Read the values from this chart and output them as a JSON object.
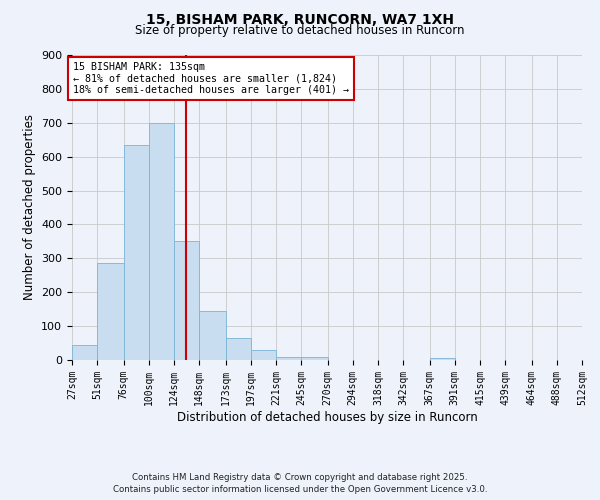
{
  "title": "15, BISHAM PARK, RUNCORN, WA7 1XH",
  "subtitle": "Size of property relative to detached houses in Runcorn",
  "xlabel": "Distribution of detached houses by size in Runcorn",
  "ylabel": "Number of detached properties",
  "bar_values": [
    43,
    285,
    635,
    700,
    352,
    145,
    65,
    30,
    10,
    8,
    0,
    0,
    0,
    0,
    5,
    0,
    0,
    0,
    0,
    0
  ],
  "bin_labels": [
    "27sqm",
    "51sqm",
    "76sqm",
    "100sqm",
    "124sqm",
    "148sqm",
    "173sqm",
    "197sqm",
    "221sqm",
    "245sqm",
    "270sqm",
    "294sqm",
    "318sqm",
    "342sqm",
    "367sqm",
    "391sqm",
    "415sqm",
    "439sqm",
    "464sqm",
    "488sqm",
    "512sqm"
  ],
  "bin_edges": [
    27,
    51,
    76,
    100,
    124,
    148,
    173,
    197,
    221,
    245,
    270,
    294,
    318,
    342,
    367,
    391,
    415,
    439,
    464,
    488,
    512
  ],
  "bar_color": "#c8ddf0",
  "bar_edge_color": "#7ab4d8",
  "vline_x": 135,
  "vline_color": "#cc0000",
  "ylim": [
    0,
    900
  ],
  "yticks": [
    0,
    100,
    200,
    300,
    400,
    500,
    600,
    700,
    800,
    900
  ],
  "annotation_title": "15 BISHAM PARK: 135sqm",
  "annotation_line1": "← 81% of detached houses are smaller (1,824)",
  "annotation_line2": "18% of semi-detached houses are larger (401) →",
  "footer_line1": "Contains HM Land Registry data © Crown copyright and database right 2025.",
  "footer_line2": "Contains public sector information licensed under the Open Government Licence v3.0.",
  "background_color": "#eef3fb",
  "grid_color": "#c8c8c8",
  "annotation_box_color": "#ffffff",
  "annotation_border_color": "#cc0000"
}
